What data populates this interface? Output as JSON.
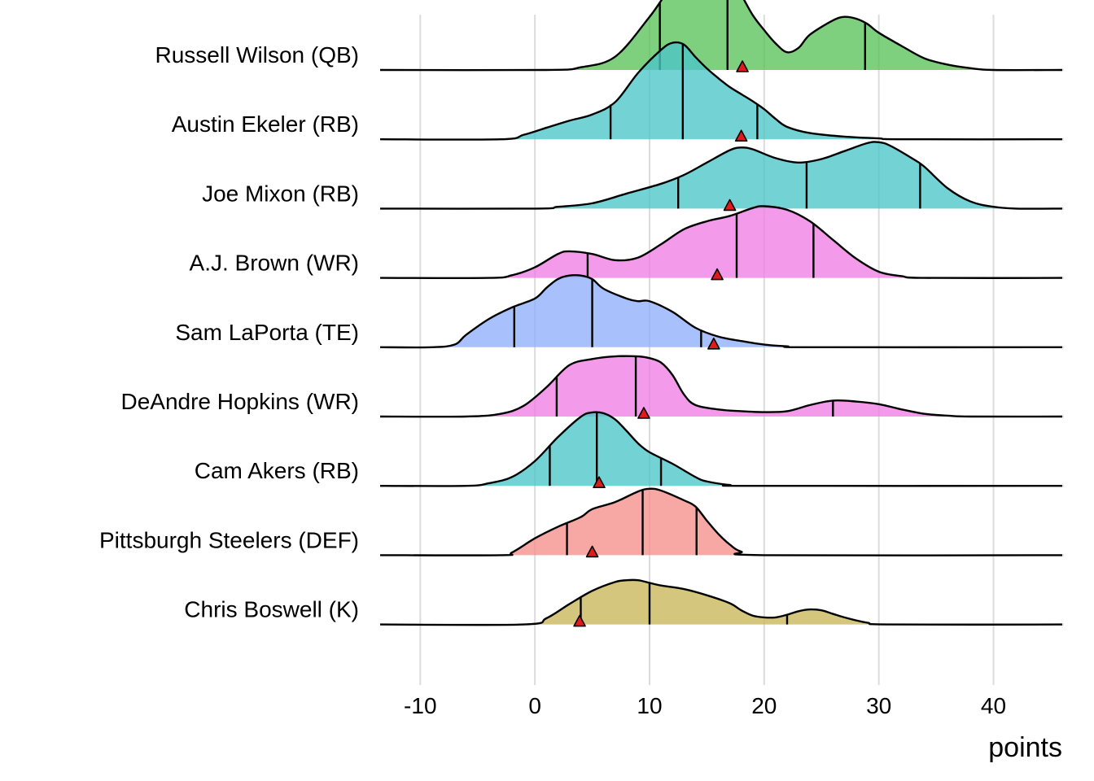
{
  "chart_data": {
    "type": "ridgeline",
    "title": "",
    "xlabel": "points",
    "ylabel": "",
    "xlim": [
      -13.5,
      46
    ],
    "xticks": [
      -10,
      0,
      10,
      20,
      30,
      40
    ],
    "xtick_labels": [
      "-10",
      "0",
      "10",
      "20",
      "30",
      "40"
    ],
    "grid": true,
    "marker": {
      "shape": "triangle",
      "color": "#e31a1c",
      "meaning": "projection"
    },
    "series": [
      {
        "name": "Russell Wilson (QB)",
        "color": "#5ac25a",
        "curve": [
          [
            -13.5,
            0
          ],
          [
            1,
            0
          ],
          [
            4,
            0.003
          ],
          [
            7,
            0.015
          ],
          [
            10,
            0.06
          ],
          [
            12,
            0.095
          ],
          [
            14,
            0.11
          ],
          [
            16,
            0.112
          ],
          [
            17,
            0.107
          ],
          [
            18,
            0.085
          ],
          [
            19,
            0.062
          ],
          [
            20,
            0.045
          ],
          [
            21,
            0.03
          ],
          [
            22,
            0.02
          ],
          [
            23,
            0.025
          ],
          [
            24,
            0.04
          ],
          [
            26,
            0.056
          ],
          [
            27,
            0.06
          ],
          [
            28,
            0.058
          ],
          [
            29,
            0.052
          ],
          [
            30,
            0.042
          ],
          [
            32,
            0.027
          ],
          [
            34,
            0.013
          ],
          [
            36,
            0.006
          ],
          [
            38,
            0.002
          ],
          [
            40,
            0
          ],
          [
            46,
            0
          ]
        ],
        "quantiles": [
          10.9,
          16.8,
          28.8
        ],
        "projection": 18.1
      },
      {
        "name": "Austin Ekeler (RB)",
        "color": "#4cc5c8",
        "curve": [
          [
            -13.5,
            0
          ],
          [
            -3,
            0
          ],
          [
            -1,
            0.005
          ],
          [
            1,
            0.013
          ],
          [
            3,
            0.021
          ],
          [
            5,
            0.028
          ],
          [
            7,
            0.042
          ],
          [
            9,
            0.075
          ],
          [
            11,
            0.101
          ],
          [
            12,
            0.109
          ],
          [
            13,
            0.107
          ],
          [
            14,
            0.093
          ],
          [
            15,
            0.08
          ],
          [
            16,
            0.069
          ],
          [
            17,
            0.059
          ],
          [
            18,
            0.051
          ],
          [
            19,
            0.043
          ],
          [
            20,
            0.034
          ],
          [
            21,
            0.023
          ],
          [
            22,
            0.014
          ],
          [
            24,
            0.007
          ],
          [
            27,
            0.003
          ],
          [
            30,
            0.001
          ],
          [
            32,
            0
          ],
          [
            46,
            0
          ]
        ],
        "quantiles": [
          6.6,
          12.9,
          19.4
        ],
        "projection": 18.0
      },
      {
        "name": "Joe Mixon (RB)",
        "color": "#4cc5c8",
        "curve": [
          [
            -13.5,
            0
          ],
          [
            0,
            0
          ],
          [
            2,
            0.002
          ],
          [
            5,
            0.006
          ],
          [
            8,
            0.017
          ],
          [
            11,
            0.028
          ],
          [
            13,
            0.038
          ],
          [
            15,
            0.052
          ],
          [
            17,
            0.066
          ],
          [
            18,
            0.069
          ],
          [
            19,
            0.067
          ],
          [
            21,
            0.057
          ],
          [
            23,
            0.052
          ],
          [
            25,
            0.056
          ],
          [
            27,
            0.065
          ],
          [
            29,
            0.074
          ],
          [
            30,
            0.075
          ],
          [
            31,
            0.071
          ],
          [
            33,
            0.056
          ],
          [
            34,
            0.047
          ],
          [
            36,
            0.023
          ],
          [
            38,
            0.008
          ],
          [
            40,
            0.002
          ],
          [
            42,
            0
          ],
          [
            46,
            0
          ]
        ],
        "quantiles": [
          12.5,
          23.7,
          33.6
        ],
        "projection": 17.0
      },
      {
        "name": "A.J. Brown (WR)",
        "color": "#f17de4",
        "curve": [
          [
            -13.5,
            0
          ],
          [
            -4,
            0
          ],
          [
            -2,
            0.003
          ],
          [
            0,
            0.012
          ],
          [
            2,
            0.027
          ],
          [
            3,
            0.03
          ],
          [
            5,
            0.027
          ],
          [
            7,
            0.02
          ],
          [
            9,
            0.023
          ],
          [
            11,
            0.038
          ],
          [
            13,
            0.055
          ],
          [
            15,
            0.064
          ],
          [
            17,
            0.07
          ],
          [
            19,
            0.079
          ],
          [
            20,
            0.081
          ],
          [
            22,
            0.077
          ],
          [
            24,
            0.064
          ],
          [
            26,
            0.043
          ],
          [
            28,
            0.022
          ],
          [
            30,
            0.007
          ],
          [
            32,
            0.002
          ],
          [
            34,
            0
          ],
          [
            46,
            0
          ]
        ],
        "quantiles": [
          4.6,
          17.6,
          24.3
        ],
        "projection": 15.9
      },
      {
        "name": "Sam LaPorta (TE)",
        "color": "#8fb0fb",
        "curve": [
          [
            -13.5,
            0
          ],
          [
            -9,
            0
          ],
          [
            -7,
            0.003
          ],
          [
            -6,
            0.014
          ],
          [
            -4,
            0.032
          ],
          [
            -2,
            0.045
          ],
          [
            0,
            0.055
          ],
          [
            1,
            0.067
          ],
          [
            2,
            0.077
          ],
          [
            3,
            0.081
          ],
          [
            4,
            0.081
          ],
          [
            5,
            0.077
          ],
          [
            6,
            0.066
          ],
          [
            8,
            0.055
          ],
          [
            9,
            0.052
          ],
          [
            10,
            0.052
          ],
          [
            12,
            0.04
          ],
          [
            14,
            0.022
          ],
          [
            16,
            0.012
          ],
          [
            18,
            0.007
          ],
          [
            20,
            0.003
          ],
          [
            22,
            0.001
          ],
          [
            24,
            0
          ],
          [
            46,
            0
          ]
        ],
        "quantiles": [
          -1.8,
          5.0,
          14.5
        ],
        "projection": 15.6
      },
      {
        "name": "DeAndre Hopkins (WR)",
        "color": "#f17de4",
        "curve": [
          [
            -13.5,
            0
          ],
          [
            -6,
            0
          ],
          [
            -3,
            0.003
          ],
          [
            -1,
            0.012
          ],
          [
            1,
            0.033
          ],
          [
            3,
            0.058
          ],
          [
            5,
            0.065
          ],
          [
            7,
            0.068
          ],
          [
            9,
            0.068
          ],
          [
            10,
            0.066
          ],
          [
            11,
            0.061
          ],
          [
            12,
            0.047
          ],
          [
            13,
            0.025
          ],
          [
            14,
            0.013
          ],
          [
            16,
            0.008
          ],
          [
            18,
            0.006
          ],
          [
            20,
            0.005
          ],
          [
            22,
            0.006
          ],
          [
            24,
            0.013
          ],
          [
            26,
            0.018
          ],
          [
            28,
            0.017
          ],
          [
            30,
            0.014
          ],
          [
            32,
            0.008
          ],
          [
            34,
            0.003
          ],
          [
            36,
            0.001
          ],
          [
            38,
            0
          ],
          [
            46,
            0
          ]
        ],
        "quantiles": [
          1.9,
          8.8,
          26.0
        ],
        "projection": 9.5
      },
      {
        "name": "Cam Akers (RB)",
        "color": "#4cc5c8",
        "curve": [
          [
            -13.5,
            0
          ],
          [
            -6,
            0
          ],
          [
            -4,
            0.003
          ],
          [
            -2,
            0.01
          ],
          [
            0,
            0.028
          ],
          [
            2,
            0.055
          ],
          [
            4,
            0.078
          ],
          [
            5,
            0.083
          ],
          [
            6,
            0.082
          ],
          [
            7,
            0.075
          ],
          [
            8,
            0.062
          ],
          [
            9,
            0.048
          ],
          [
            10,
            0.038
          ],
          [
            12,
            0.025
          ],
          [
            14,
            0.01
          ],
          [
            15,
            0.005
          ],
          [
            17,
            0.001
          ],
          [
            19,
            0
          ],
          [
            46,
            0
          ]
        ],
        "quantiles": [
          1.3,
          5.4,
          11.0
        ],
        "projection": 5.6
      },
      {
        "name": "Pittsburgh Steelers (DEF)",
        "color": "#f6908a",
        "curve": [
          [
            -13.5,
            0
          ],
          [
            -3,
            0
          ],
          [
            -2,
            0.003
          ],
          [
            0,
            0.019
          ],
          [
            2,
            0.032
          ],
          [
            4,
            0.043
          ],
          [
            5,
            0.052
          ],
          [
            7,
            0.06
          ],
          [
            9,
            0.072
          ],
          [
            10,
            0.075
          ],
          [
            11,
            0.073
          ],
          [
            13,
            0.062
          ],
          [
            14,
            0.055
          ],
          [
            15,
            0.039
          ],
          [
            16,
            0.024
          ],
          [
            17,
            0.012
          ],
          [
            18,
            0.004
          ],
          [
            20,
            0
          ],
          [
            46,
            0
          ]
        ],
        "quantiles": [
          2.8,
          9.4,
          14.1
        ],
        "projection": 5.0
      },
      {
        "name": "Chris Boswell (K)",
        "color": "#c8b657",
        "curve": [
          [
            -13.5,
            0
          ],
          [
            -1,
            0
          ],
          [
            1,
            0.007
          ],
          [
            3,
            0.023
          ],
          [
            5,
            0.038
          ],
          [
            7,
            0.048
          ],
          [
            8,
            0.05
          ],
          [
            9,
            0.05
          ],
          [
            10,
            0.047
          ],
          [
            11,
            0.044
          ],
          [
            13,
            0.04
          ],
          [
            15,
            0.033
          ],
          [
            17,
            0.024
          ],
          [
            18,
            0.016
          ],
          [
            19,
            0.01
          ],
          [
            20,
            0.008
          ],
          [
            21,
            0.008
          ],
          [
            22,
            0.011
          ],
          [
            23,
            0.015
          ],
          [
            24,
            0.017
          ],
          [
            25,
            0.016
          ],
          [
            26,
            0.012
          ],
          [
            27,
            0.008
          ],
          [
            29,
            0.002
          ],
          [
            31,
            0
          ],
          [
            46,
            0
          ]
        ],
        "quantiles": [
          4.0,
          10.0,
          22.0
        ],
        "projection": 3.9
      }
    ]
  }
}
